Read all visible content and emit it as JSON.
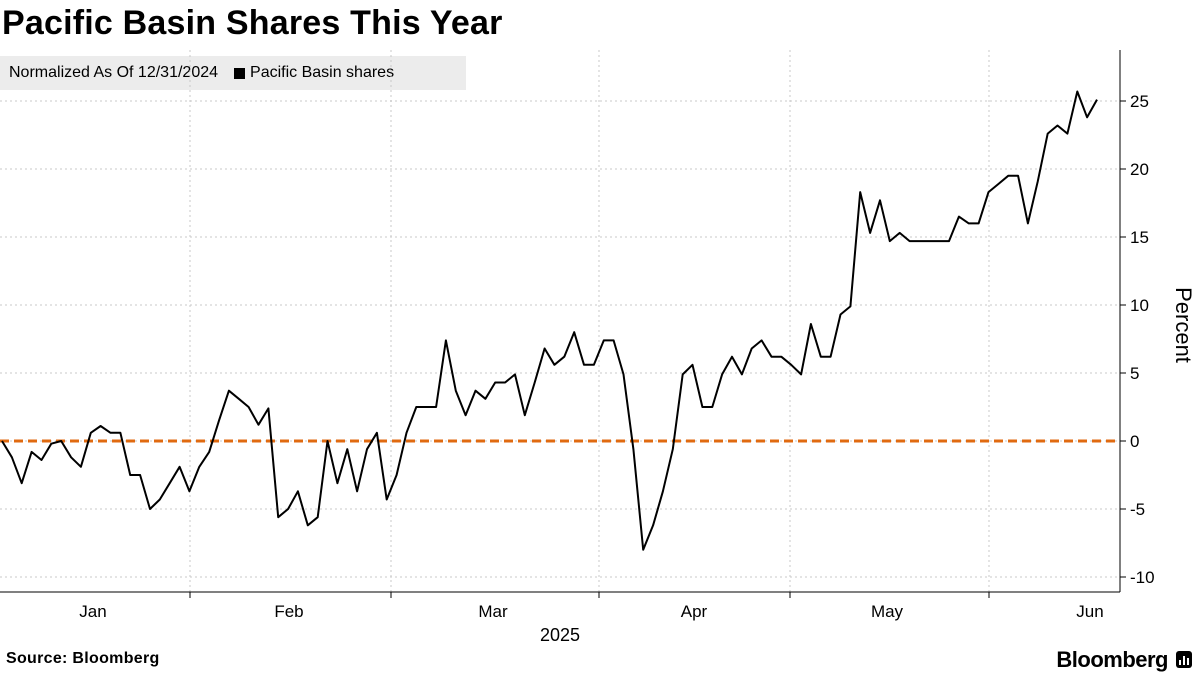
{
  "chart_data": {
    "type": "line",
    "title": "Pacific Basin Shares This Year",
    "legend": {
      "note": "Normalized As Of 12/31/2024",
      "entries": [
        "Pacific Basin shares"
      ],
      "placement": "top-left"
    },
    "xlabel": "2025",
    "ylabel": "Percent",
    "x_ticks": [
      "Jan",
      "Feb",
      "Mar",
      "Apr",
      "May",
      "Jun"
    ],
    "y_ticks": [
      25,
      20,
      15,
      10,
      5,
      0,
      -5,
      -10
    ],
    "ylim": [
      -11,
      29
    ],
    "grid": true,
    "reference_line": {
      "value": 0,
      "style": "dashed",
      "color": "#e06a10"
    },
    "series": [
      {
        "name": "Pacific Basin shares",
        "color": "#000000",
        "values": [
          0,
          -1.2,
          -3.1,
          -0.8,
          -1.4,
          -0.2,
          0,
          -1.2,
          -1.9,
          0.6,
          1.1,
          0.6,
          0.6,
          -2.5,
          -2.5,
          -5,
          -4.3,
          -3.1,
          -1.9,
          -3.7,
          -1.9,
          -0.8,
          1.5,
          3.7,
          3.1,
          2.5,
          1.2,
          2.4,
          -5.6,
          -5,
          -3.7,
          -6.2,
          -5.6,
          0,
          -3.1,
          -0.6,
          -3.7,
          -0.6,
          0.6,
          -4.3,
          -2.5,
          0.6,
          2.5,
          2.5,
          2.5,
          7.4,
          3.7,
          1.9,
          3.7,
          3.1,
          4.3,
          4.3,
          4.9,
          1.9,
          4.3,
          6.8,
          5.6,
          6.2,
          8,
          5.6,
          5.6,
          7.4,
          7.4,
          4.9,
          -0.6,
          -8,
          -6.2,
          -3.7,
          -0.6,
          4.9,
          5.6,
          2.5,
          2.5,
          4.9,
          6.2,
          4.9,
          6.8,
          7.4,
          6.2,
          6.2,
          5.6,
          4.9,
          8.6,
          6.2,
          6.2,
          9.3,
          9.9,
          18.3,
          15.3,
          17.7,
          14.7,
          15.3,
          14.7,
          14.7,
          14.7,
          14.7,
          14.7,
          16.5,
          16,
          16,
          18.3,
          18.9,
          19.5,
          19.5,
          16,
          19.1,
          22.6,
          23.2,
          22.6,
          25.7,
          23.8,
          25.1
        ]
      }
    ]
  },
  "footer": {
    "source": "Source: Bloomberg",
    "brand": "Bloomberg"
  }
}
